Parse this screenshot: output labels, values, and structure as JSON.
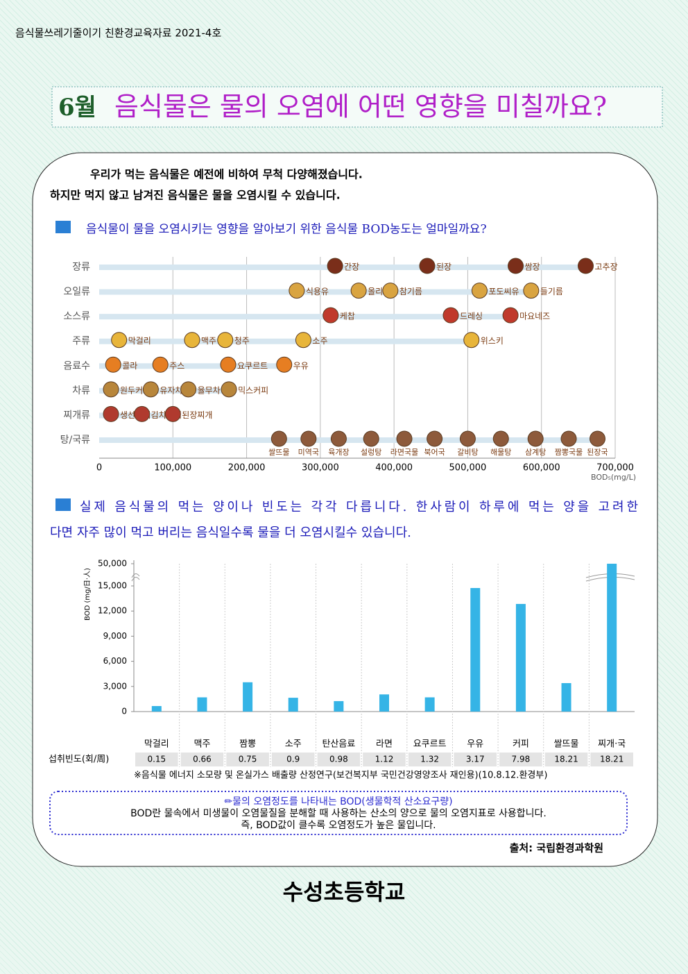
{
  "header": "음식물쓰레기줄이기 친환경교육자료 2021-4호",
  "title_month": "6월",
  "title": "음식물은 물의 오염에 어떤 영향을 미칠까요?",
  "intro": [
    "우리가 먹는 음식물은 예전에 비하여 무척 다양해졌습니다.",
    "하지만 먹지 않고 남겨진 음식물은 물을 오염시킬 수 있습니다."
  ],
  "section1": "음식물이 물을 오염시키는 영향을 알아보기 위한 음식물 BOD농도는 얼마일까요?",
  "section2": [
    "실제 음식물의 먹는 양이나 빈도는 각각 다릅니다. 한사람이 하루에 먹는 양을 고려한",
    "다면 자주 많이 먹고 버리는 음식일수록 물을 더 오염시킬수 있습니다."
  ],
  "chart_data": [
    {
      "type": "dot",
      "x_label": "BOD₅(mg/L)",
      "xlim": [
        0,
        700000
      ],
      "xticks": [
        0,
        {
          "value": 100000,
          "label": "100,000"
        },
        {
          "value": 200000,
          "label": "200,000"
        },
        {
          "value": 300000,
          "label": "300,000"
        },
        {
          "value": 400000,
          "label": "400,000"
        },
        {
          "value": 500000,
          "label": "500,000"
        },
        {
          "value": 600000,
          "label": "600,000"
        },
        {
          "value": 700000,
          "label": "700,000"
        }
      ],
      "grid": true,
      "rows": [
        {
          "name": "장류",
          "color": "#7a2e1a",
          "labels": [
            "간장",
            "된장",
            "쌈장",
            "고추장"
          ],
          "values": [
            320000,
            445000,
            565000,
            660000
          ]
        },
        {
          "name": "오일류",
          "color": "#d9a441",
          "labels": [
            "식용유",
            "올리브유",
            "참기름",
            "포도씨유",
            "들기름"
          ],
          "values": [
            268000,
            352000,
            395000,
            516000,
            586000
          ]
        },
        {
          "name": "소스류",
          "color": "#c0392b",
          "labels": [
            "케찹",
            "드레싱",
            "마요네즈"
          ],
          "values": [
            314000,
            477000,
            558000
          ]
        },
        {
          "name": "주류",
          "color": "#e8b53a",
          "labels": [
            "막걸리",
            "맥주",
            "청주",
            "소주",
            "위스키"
          ],
          "values": [
            27000,
            126000,
            171000,
            277000,
            505000
          ]
        },
        {
          "name": "음료수",
          "color": "#e67e22",
          "labels": [
            "콜라",
            "주스",
            "요쿠르트",
            "우유"
          ],
          "values": [
            19000,
            83000,
            175000,
            251000
          ]
        },
        {
          "name": "차류",
          "color": "#b8863b",
          "labels": [
            "원두커피",
            "유자차",
            "율무차",
            "믹스커피"
          ],
          "values": [
            16000,
            70000,
            121000,
            176000
          ]
        },
        {
          "name": "찌개류",
          "color": "#b03a2e",
          "labels": [
            "생선찌개",
            "김치찌개",
            "된장찌개"
          ],
          "values": [
            16000,
            58000,
            100000
          ]
        },
        {
          "name": "탕/국류",
          "color": "#8d5a3b",
          "labels": [
            "쌀뜨물",
            "미역국",
            "육개장",
            "설렁탕",
            "라면국물",
            "북어국",
            "갈비탕",
            "해물탕",
            "삼계탕",
            "짬뽕국물",
            "된장국"
          ],
          "values": [
            244000,
            284000,
            325000,
            369000,
            414000,
            455000,
            500000,
            545000,
            592000,
            637000,
            676000
          ]
        }
      ]
    },
    {
      "type": "bar",
      "y_label": "BOD (mg/日·人)",
      "categories": [
        "막걸리",
        "맥주",
        "짬뽕",
        "소주",
        "탄산음료",
        "라면",
        "요쿠르트",
        "우유",
        "커피",
        "쌀뜨물",
        "찌개·국"
      ],
      "values": [
        660,
        1700,
        3500,
        1650,
        1250,
        2050,
        1700,
        14750,
        12850,
        3400,
        50000
      ],
      "color": "#35b4e6",
      "ylim": [
        0,
        50000
      ],
      "yticks": [
        0,
        {
          "value": 3000,
          "label": "3,000"
        },
        {
          "value": 6000,
          "label": "6,000"
        },
        {
          "value": 9000,
          "label": "9,000"
        },
        {
          "value": 12000,
          "label": "12,000"
        },
        {
          "value": 15000,
          "label": "15,000"
        },
        {
          "value": 50000,
          "label": "50,000"
        }
      ],
      "axis_break": true,
      "grid": true,
      "table": {
        "label": "섭취빈도(회/周)",
        "values": [
          0.15,
          0.66,
          0.75,
          0.9,
          0.98,
          1.12,
          1.32,
          3.17,
          7.98,
          18.21,
          18.21
        ]
      }
    }
  ],
  "citation": "※음식물 에너지 소모량 및 온실가스 배출량 산정연구(보건복지부 국민건강영양조사 재인용)(10.8.12.환경부)",
  "note": {
    "title": "✏물의 오염정도를 나타내는 BOD(생물학적 산소요구량)",
    "lines": [
      "BOD란 물속에서 미생물이 오염물질을 분해할 때 사용하는 산소의 양으로 물의 오염지표로 사용합니다.",
      "즉, BOD값이 클수록 오염정도가 높은 물입니다."
    ]
  },
  "source": "출처: 국립환경과학원",
  "school": "수성초등학교"
}
